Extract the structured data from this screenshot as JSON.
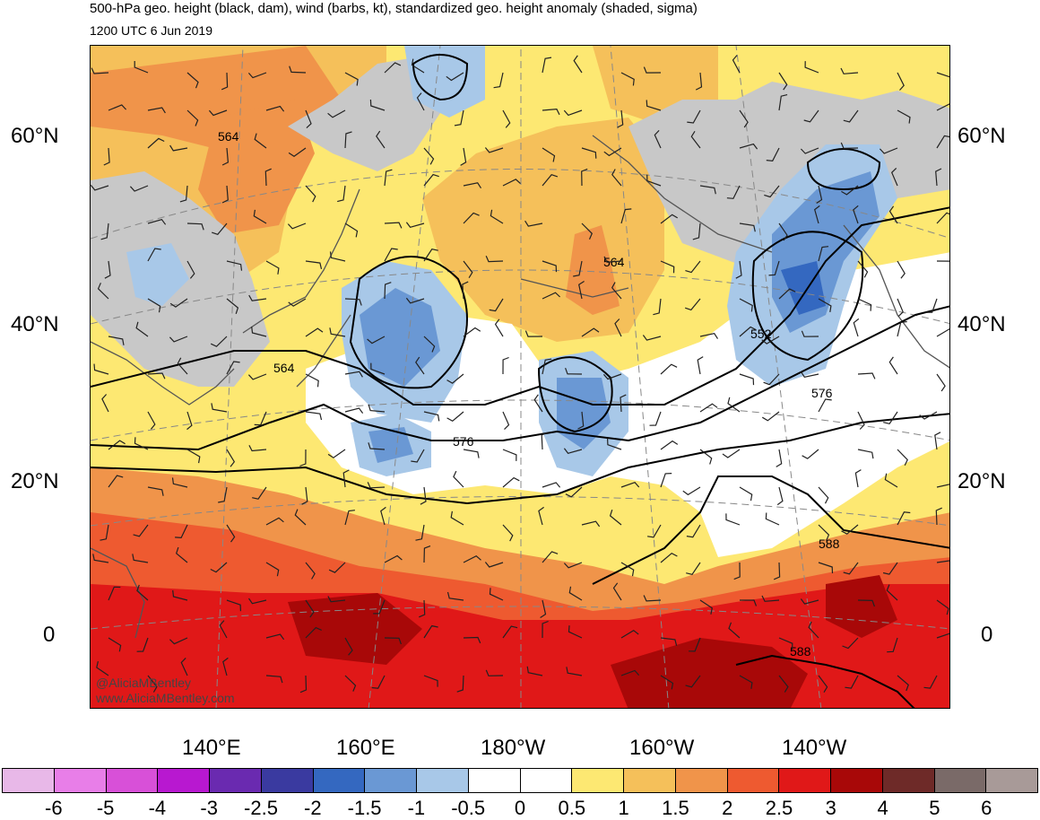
{
  "header": {
    "title": "500-hPa geo. height (black, dam), wind (barbs, kt), standardized geo. height anomaly (shaded, sigma)",
    "valid_time": "1200 UTC 6 Jun 2019"
  },
  "axes": {
    "lat_left": [
      "60°N",
      "40°N",
      "20°N",
      "0"
    ],
    "lat_right": [
      "60°N",
      "40°N",
      "20°N",
      "0"
    ],
    "lon": [
      "140°E",
      "160°E",
      "180°W",
      "160°W",
      "140°W"
    ]
  },
  "contour_labels": [
    "564",
    "564",
    "564",
    "552",
    "576",
    "576",
    "588",
    "588"
  ],
  "watermark": {
    "handle": "@AliciaMBentley",
    "site": "www.AliciaMBentley.com"
  },
  "colorbar": {
    "labels": [
      "-6",
      "-5",
      "-4",
      "-3",
      "-2.5",
      "-2",
      "-1.5",
      "-1",
      "-0.5",
      "0",
      "0.5",
      "1",
      "1.5",
      "2",
      "2.5",
      "3",
      "4",
      "5",
      "6"
    ],
    "colors": [
      "#e8b8e8",
      "#e87ee8",
      "#d850d8",
      "#b818d0",
      "#6a2ab0",
      "#3a3aa0",
      "#3468c0",
      "#6a98d4",
      "#a8c8e8",
      "#ffffff",
      "#ffffff",
      "#fde872",
      "#f5c05a",
      "#f0944a",
      "#ee5a30",
      "#e01818",
      "#a80808",
      "#6e2a28",
      "#7a6a68",
      "#a89a98"
    ]
  },
  "colors": {
    "land_gray": "#c8c8c8",
    "coast": "#555555",
    "contour": "#000000"
  }
}
